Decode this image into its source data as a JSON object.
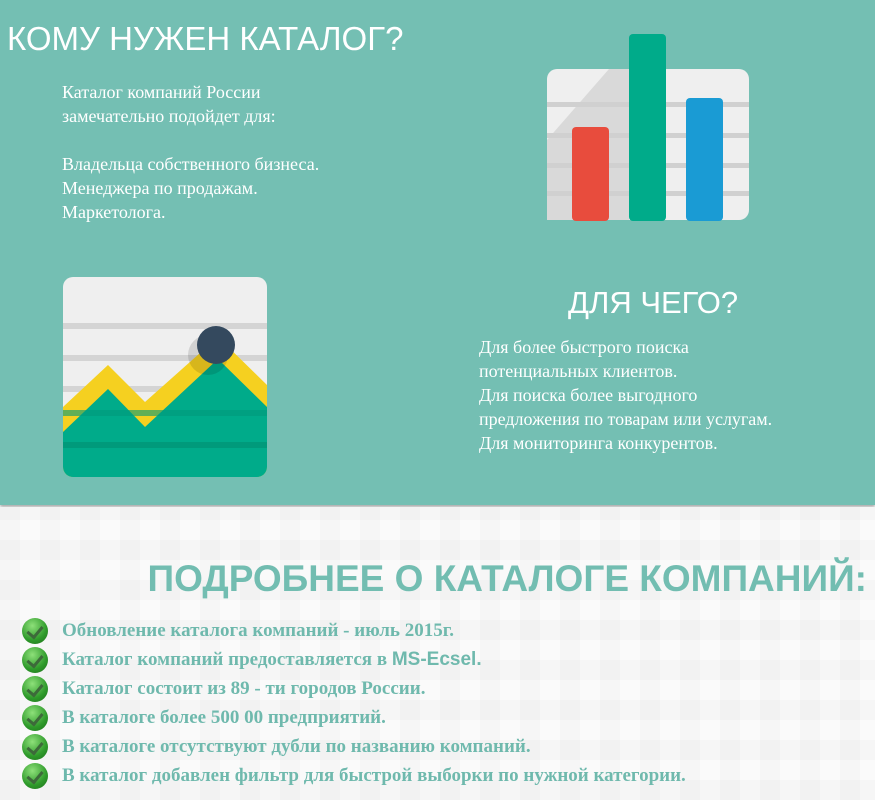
{
  "who": {
    "title": "КОМУ НУЖЕН КАТАЛОГ?",
    "intro": "Каталог компаний России\nзамечательно подойдет для:",
    "items": "Владельца собственного бизнеса.\nМенеджера по продажам.\nМаркетолога."
  },
  "why": {
    "title": "ДЛЯ ЧЕГО?",
    "items": "Для более быстрого поиска\nпотенциальных клиентов.\nДля поиска более выгодного\nпредложения по товарам или услугам.\nДля мониторинга конкурентов."
  },
  "icons": {
    "bar_chart": "bar-chart-icon",
    "line_chart": "area-chart-icon",
    "check": "check-icon"
  },
  "colors": {
    "background": "#74bfb3",
    "accent_text": "#6fb9ad",
    "red": "#e84c3d",
    "green": "#00ab8a",
    "blue": "#1a9bd4",
    "yellow": "#f5d020",
    "dot": "#34495e"
  },
  "more": {
    "title": "ПОДРОБНЕЕ О КАТАЛОГЕ КОМПАНИЙ:",
    "items": [
      {
        "text": "Обновление каталога компаний - июль 2015г."
      },
      {
        "text": "Каталог компаний предоставляется в ",
        "suffix": "MS-Ecsel."
      },
      {
        "text": "Каталог состоит из 89 - ти городов России."
      },
      {
        "text": "В каталоге более 500 00 предприятий."
      },
      {
        "text": "В каталоге отсутствуют дубли по названию компаний."
      },
      {
        "text": "В каталог добавлен фильтр для быстрой выборки по нужной категории."
      }
    ]
  }
}
